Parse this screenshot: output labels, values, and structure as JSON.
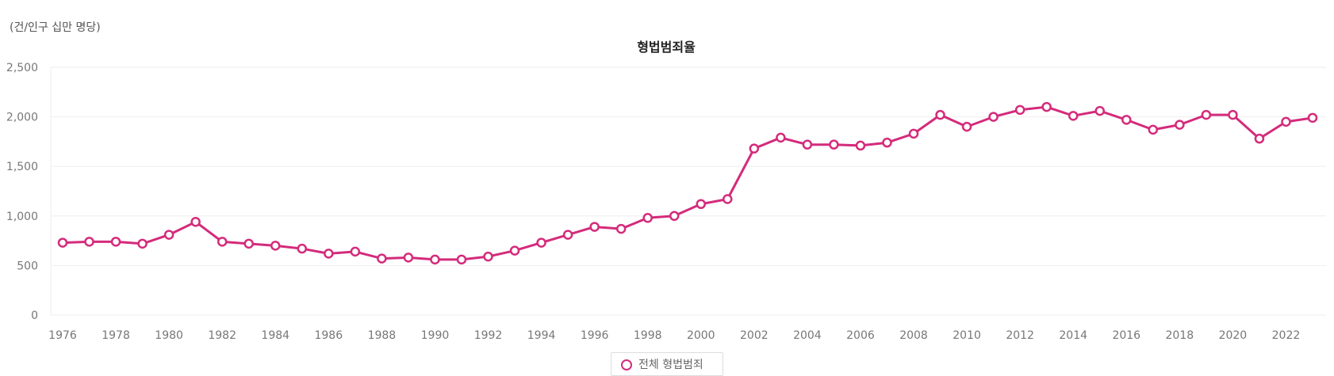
{
  "unit_label": "(건/인구 십만 명당)",
  "colors": {
    "series": "#d42b7b",
    "grid": "#eeeeee",
    "tick": "#777777"
  },
  "chart_data": {
    "type": "line",
    "title": "형법범죄율",
    "xlabel": "",
    "ylabel": "",
    "ylim": [
      0,
      2500
    ],
    "yticks": [
      "0",
      "500",
      "1,000",
      "1,500",
      "2,000",
      "2,500"
    ],
    "ytick_values": [
      0,
      500,
      1000,
      1500,
      2000,
      2500
    ],
    "xticks": [
      "1976",
      "1978",
      "1980",
      "1982",
      "1984",
      "1986",
      "1988",
      "1990",
      "1992",
      "1994",
      "1996",
      "1998",
      "2000",
      "2002",
      "2004",
      "2006",
      "2008",
      "2010",
      "2012",
      "2014",
      "2016",
      "2018",
      "2020",
      "2022"
    ],
    "grid": true,
    "legend_position": "bottom-center",
    "x": [
      1976,
      1977,
      1978,
      1979,
      1980,
      1981,
      1982,
      1983,
      1984,
      1985,
      1986,
      1987,
      1988,
      1989,
      1990,
      1991,
      1992,
      1993,
      1994,
      1995,
      1996,
      1997,
      1998,
      1999,
      2000,
      2001,
      2002,
      2003,
      2004,
      2005,
      2006,
      2007,
      2008,
      2009,
      2010,
      2011,
      2012,
      2013,
      2014,
      2015,
      2016,
      2017,
      2018,
      2019,
      2020,
      2021,
      2022,
      2023
    ],
    "series": [
      {
        "name": "전체 형법범죄",
        "values": [
          730,
          740,
          740,
          720,
          810,
          940,
          740,
          720,
          700,
          670,
          620,
          640,
          570,
          580,
          560,
          560,
          590,
          650,
          730,
          810,
          890,
          870,
          980,
          1000,
          1120,
          1170,
          1680,
          1790,
          1720,
          1720,
          1710,
          1740,
          1830,
          2020,
          1900,
          2000,
          2070,
          2100,
          2010,
          2060,
          1970,
          1870,
          1920,
          2020,
          2020,
          1780,
          1950,
          1990
        ]
      }
    ]
  }
}
